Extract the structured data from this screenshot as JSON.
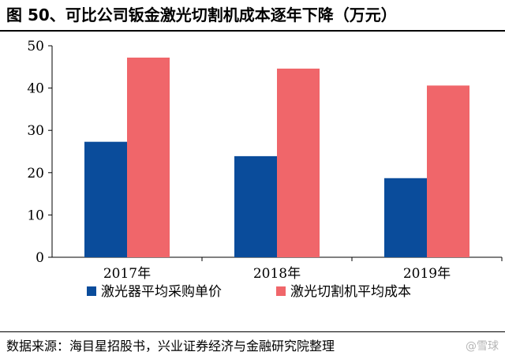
{
  "header": {
    "title": "图 50、可比公司钣金激光切割机成本逐年下降（万元）"
  },
  "footer": {
    "source": "数据来源：海目星招股书，兴业证券经济与金融研究院整理",
    "watermark": "@雪球"
  },
  "chart_data": {
    "type": "bar",
    "categories": [
      "2017年",
      "2018年",
      "2019年"
    ],
    "series": [
      {
        "name": "激光器平均采购单价",
        "values": [
          27.3,
          23.9,
          18.7
        ],
        "color": "#0a4c9b"
      },
      {
        "name": "激光切割机平均成本",
        "values": [
          47.2,
          44.6,
          40.6
        ],
        "color": "#f0666a"
      }
    ],
    "ylim": [
      0,
      50
    ],
    "yticks": [
      0,
      10,
      20,
      30,
      40,
      50
    ],
    "grid": false,
    "legend": "bottom"
  }
}
